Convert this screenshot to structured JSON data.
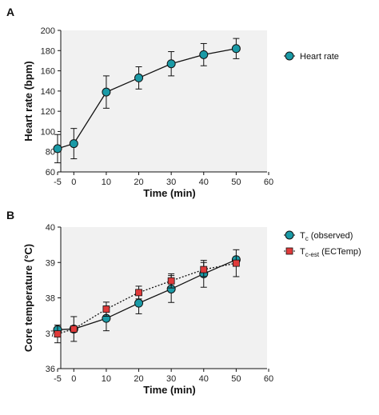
{
  "colors": {
    "teal": "#1a9aa6",
    "red": "#e03a3a",
    "frame": "#f1f1f1",
    "line": "#111111"
  },
  "chart_data": [
    {
      "panel_label": "A",
      "type": "line",
      "xlabel": "Time (min)",
      "ylabel": "Heart rate (bpm)",
      "xlim": [
        -5,
        60
      ],
      "ylim": [
        60,
        200
      ],
      "xticks": [
        -5,
        0,
        10,
        20,
        30,
        40,
        50,
        60
      ],
      "yticks": [
        60,
        80,
        100,
        120,
        140,
        160,
        180,
        200
      ],
      "legend": "right",
      "series": [
        {
          "name": "Heart rate",
          "marker": "circle",
          "color": "#1a9aa6",
          "line": "solid",
          "x": [
            -5,
            0,
            10,
            20,
            30,
            40,
            50
          ],
          "y": [
            83,
            88,
            139,
            153,
            167,
            176,
            182
          ],
          "err": [
            14,
            15,
            16,
            11,
            12,
            11,
            10
          ]
        }
      ]
    },
    {
      "panel_label": "B",
      "type": "line",
      "xlabel": "Time (min)",
      "ylabel": "Core temperature (°C)",
      "xlim": [
        -5,
        60
      ],
      "ylim": [
        36,
        40
      ],
      "xticks": [
        -5,
        0,
        10,
        20,
        30,
        40,
        50,
        60
      ],
      "yticks": [
        36,
        37,
        38,
        39,
        40
      ],
      "legend": "right",
      "series": [
        {
          "name": "T",
          "name_sub": "c",
          "name_rest": " (observed)",
          "marker": "circle",
          "color": "#1a9aa6",
          "line": "solid",
          "x": [
            -5,
            0,
            10,
            20,
            30,
            40,
            50
          ],
          "y": [
            37.1,
            37.12,
            37.42,
            37.85,
            38.25,
            38.68,
            39.08
          ],
          "err": [
            0.05,
            0.35,
            0.35,
            0.3,
            0.38,
            0.38,
            0.08
          ]
        },
        {
          "name": "T",
          "name_sub": "c-est",
          "name_rest": " (ECTemp)",
          "marker": "square",
          "color": "#e03a3a",
          "line": "dotted",
          "x": [
            -5,
            0,
            10,
            20,
            30,
            40,
            50
          ],
          "y": [
            36.98,
            37.12,
            37.68,
            38.15,
            38.48,
            38.8,
            38.98
          ],
          "err": [
            0.25,
            0.05,
            0.2,
            0.18,
            0.2,
            0.2,
            0.38
          ]
        }
      ]
    }
  ]
}
